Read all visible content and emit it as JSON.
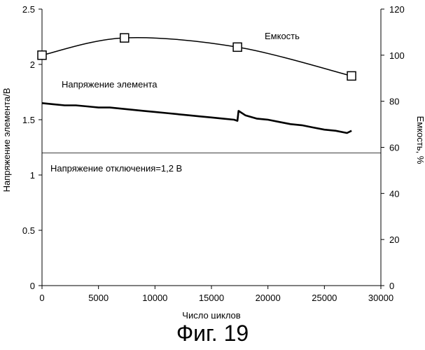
{
  "chart_data": {
    "type": "line",
    "title": "",
    "xlabel": "Число циклов",
    "ylabel_left": "Напряжение элемента/В",
    "ylabel_right": "Емкость, %",
    "xlim": [
      0,
      30000
    ],
    "ylim_left": [
      0,
      2.5
    ],
    "ylim_right": [
      0,
      120
    ],
    "x_ticks": [
      "0",
      "5000",
      "10000",
      "15000",
      "20000",
      "25000",
      "30000"
    ],
    "y_left_ticks": [
      "0",
      "0.5",
      "1",
      "1.5",
      "2",
      "2.5"
    ],
    "y_right_ticks": [
      "0",
      "20",
      "40",
      "60",
      "80",
      "100",
      "120"
    ],
    "grid": false,
    "series": [
      {
        "name": "Напряжение элемента",
        "axis": "left",
        "x": [
          0,
          1000,
          2000,
          3000,
          4000,
          5000,
          6000,
          7000,
          8000,
          9000,
          10000,
          11000,
          12000,
          13000,
          14000,
          15000,
          16000,
          17000,
          17300,
          17400,
          18000,
          19000,
          20000,
          21000,
          22000,
          23000,
          24000,
          25000,
          26000,
          27000,
          27400
        ],
        "y": [
          1.65,
          1.64,
          1.63,
          1.63,
          1.62,
          1.61,
          1.61,
          1.6,
          1.59,
          1.58,
          1.57,
          1.56,
          1.55,
          1.54,
          1.53,
          1.52,
          1.51,
          1.5,
          1.49,
          1.58,
          1.54,
          1.51,
          1.5,
          1.48,
          1.46,
          1.45,
          1.43,
          1.41,
          1.4,
          1.38,
          1.4
        ]
      },
      {
        "name": "Емкость",
        "axis": "right",
        "x": [
          0,
          7300,
          17300,
          27400
        ],
        "y": [
          100,
          107.5,
          103.5,
          91
        ]
      }
    ],
    "annotations": {
      "voltage_label": "Напряжение элемента",
      "capacity_label": "Емкость",
      "cutoff_label": "Напряжение отключения=1,2 В",
      "cutoff_voltage": 1.2
    }
  },
  "caption": "Фиг. 19"
}
